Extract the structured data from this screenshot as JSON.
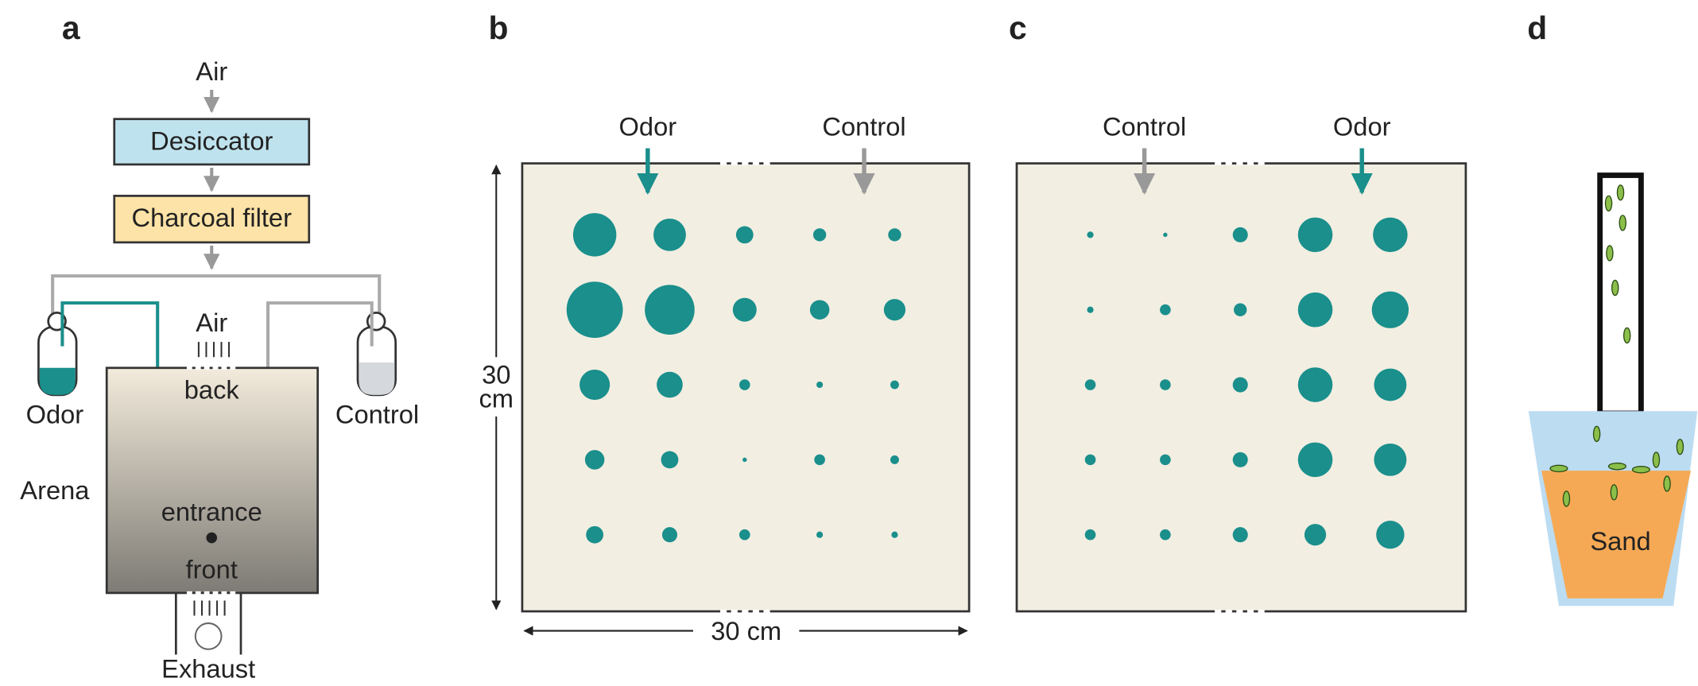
{
  "panel_a": {
    "label": "a",
    "air_in": "Air",
    "desiccator": "Desiccator",
    "filter": "Charcoal filter",
    "odor": "Odor",
    "control": "Control",
    "air_top": "Air",
    "back": "back",
    "arena": "Arena",
    "entrance": "entrance",
    "front": "front",
    "exhaust": "Exhaust"
  },
  "panel_b": {
    "label": "b",
    "odor": "Odor",
    "control": "Control",
    "height_label": [
      "30",
      "cm"
    ],
    "width_label": "30 cm",
    "dots": [
      [
        40,
        30,
        16,
        12,
        12
      ],
      [
        52,
        46,
        22,
        18,
        20
      ],
      [
        28,
        24,
        10,
        6,
        8
      ],
      [
        18,
        16,
        4,
        10,
        8
      ],
      [
        16,
        14,
        10,
        6,
        6
      ]
    ]
  },
  "panel_c": {
    "label": "c",
    "control": "Control",
    "odor": "Odor",
    "dots": [
      [
        6,
        4,
        14,
        32,
        32
      ],
      [
        6,
        10,
        12,
        32,
        34
      ],
      [
        10,
        10,
        14,
        32,
        30
      ],
      [
        10,
        10,
        14,
        32,
        30
      ],
      [
        10,
        10,
        14,
        20,
        26
      ]
    ]
  },
  "panel_d": {
    "label": "d",
    "sand": "Sand"
  }
}
